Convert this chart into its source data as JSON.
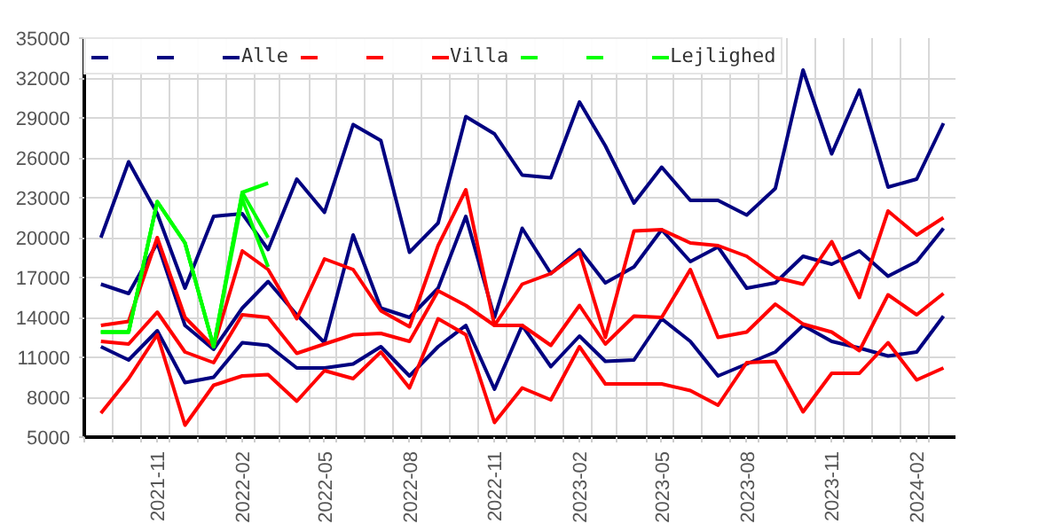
{
  "chart_data": {
    "type": "line",
    "x": [
      "2021-09",
      "2021-10",
      "2021-11",
      "2021-12",
      "2022-01",
      "2022-02",
      "2022-03",
      "2022-04",
      "2022-05",
      "2022-06",
      "2022-07",
      "2022-08",
      "2022-09",
      "2022-10",
      "2022-11",
      "2022-12",
      "2023-01",
      "2023-02",
      "2023-03",
      "2023-04",
      "2023-05",
      "2023-06",
      "2023-07",
      "2023-08",
      "2023-09",
      "2023-10",
      "2023-11",
      "2023-12",
      "2024-01",
      "2024-02",
      "2024-03"
    ],
    "series": [
      {
        "color": "#000080",
        "values": [
          20000,
          25700,
          21800,
          16200,
          21600,
          21800,
          19100,
          24400,
          21900,
          28500,
          27300,
          18900,
          21100,
          29100,
          27800,
          24700,
          24500,
          30200,
          26900,
          22600,
          25300,
          22800,
          22800,
          21700,
          23700,
          32600,
          26300,
          31100,
          23800,
          24400,
          28600
        ]
      },
      {
        "color": "#000080",
        "values": [
          16500,
          15800,
          19600,
          13400,
          11600,
          14700,
          16700,
          14200,
          12100,
          20200,
          14700,
          14000,
          16200,
          21600,
          14000,
          20700,
          17300,
          19100,
          16600,
          17800,
          20600,
          18200,
          19300,
          16200,
          16600,
          18600,
          18000,
          19000,
          17100,
          18200,
          20700
        ]
      },
      {
        "name": "Alle",
        "color": "#000080",
        "values": [
          11800,
          10800,
          13000,
          9100,
          9500,
          12100,
          11900,
          10200,
          10200,
          10500,
          11800,
          9600,
          11800,
          13400,
          8600,
          13400,
          10300,
          12600,
          10700,
          10800,
          13900,
          12200,
          9600,
          10500,
          11400,
          13400,
          12200,
          11700,
          11100,
          11400,
          14100
        ]
      },
      {
        "color": "#ff0000",
        "values": [
          13400,
          13700,
          20000,
          14000,
          11800,
          19000,
          17600,
          13900,
          18400,
          17600,
          14500,
          13300,
          19400,
          23600,
          13400,
          16500,
          17300,
          18900,
          12500,
          20500,
          20600,
          19600,
          19400,
          18600,
          17000,
          16500,
          19700,
          15500,
          22000,
          20200,
          21500
        ]
      },
      {
        "color": "#ff0000",
        "values": [
          12200,
          12000,
          14400,
          11400,
          10600,
          14200,
          14000,
          11300,
          12000,
          12700,
          12800,
          12200,
          16000,
          14900,
          13400,
          13400,
          11900,
          14900,
          12000,
          14100,
          14000,
          17600,
          12500,
          12900,
          15000,
          13500,
          12900,
          11500,
          15700,
          14200,
          15800
        ]
      },
      {
        "name": "Villa",
        "color": "#ff0000",
        "values": [
          6800,
          9400,
          12700,
          5900,
          8900,
          9600,
          9700,
          7700,
          10000,
          9400,
          11400,
          8700,
          13900,
          12700,
          6100,
          8700,
          7800,
          11800,
          9000,
          9000,
          9000,
          8500,
          7400,
          10600,
          10700,
          6900,
          9800,
          9800,
          12100,
          9300,
          10200
        ]
      },
      {
        "color": "#00ff00",
        "values": [
          12900,
          12900,
          22700,
          19600,
          11800,
          23400,
          24100,
          null,
          null,
          null,
          null,
          null,
          null,
          null,
          null,
          null,
          null,
          null,
          null,
          null,
          null,
          null,
          null,
          null,
          null,
          null,
          null,
          null,
          null,
          null,
          null
        ]
      },
      {
        "color": "#00ff00",
        "values": [
          12900,
          12900,
          22700,
          19600,
          11800,
          23400,
          20000,
          null,
          null,
          null,
          null,
          null,
          null,
          null,
          null,
          null,
          null,
          null,
          null,
          null,
          null,
          null,
          null,
          null,
          null,
          null,
          null,
          null,
          null,
          null,
          null
        ]
      },
      {
        "name": "Lejlighed",
        "color": "#00ff00",
        "values": [
          12900,
          12900,
          22700,
          19600,
          11800,
          22900,
          17800,
          null,
          null,
          null,
          null,
          null,
          null,
          null,
          null,
          null,
          null,
          null,
          null,
          null,
          null,
          null,
          null,
          null,
          null,
          null,
          null,
          null,
          null,
          null,
          null
        ]
      }
    ],
    "xlim": [
      "2021-08-14",
      "2024-03-14"
    ],
    "xticks": [
      "2021-11",
      "2022-02",
      "2022-05",
      "2022-08",
      "2022-11",
      "2023-02",
      "2023-05",
      "2023-08",
      "2023-11",
      "2024-02",
      {
        "value": "2021-08-14",
        "label": null
      },
      {
        "value": "2021-09-14",
        "label": null
      },
      {
        "value": "2021-10-14",
        "label": null
      },
      {
        "value": "2021-11-14",
        "label": null
      },
      {
        "value": "2021-12-14",
        "label": null
      },
      {
        "value": "2022-01-14",
        "label": null
      },
      {
        "value": "2022-02-14",
        "label": null
      },
      {
        "value": "2022-03-14",
        "label": null
      },
      {
        "value": "2022-04-14",
        "label": null
      },
      {
        "value": "2022-05-14",
        "label": null
      },
      {
        "value": "2022-06-14",
        "label": null
      },
      {
        "value": "2022-07-14",
        "label": null
      },
      {
        "value": "2022-08-14",
        "label": null
      },
      {
        "value": "2022-09-14",
        "label": null
      },
      {
        "value": "2022-10-14",
        "label": null
      },
      {
        "value": "2022-11-14",
        "label": null
      },
      {
        "value": "2022-12-14",
        "label": null
      },
      {
        "value": "2023-01-14",
        "label": null
      },
      {
        "value": "2023-02-14",
        "label": null
      },
      {
        "value": "2023-03-14",
        "label": null
      },
      {
        "value": "2023-04-14",
        "label": null
      },
      {
        "value": "2023-05-14",
        "label": null
      },
      {
        "value": "2023-06-14",
        "label": null
      },
      {
        "value": "2023-07-14",
        "label": null
      },
      {
        "value": "2023-08-14",
        "label": null
      },
      {
        "value": "2023-09-14",
        "label": null
      },
      {
        "value": "2023-10-14",
        "label": null
      },
      {
        "value": "2023-11-14",
        "label": null
      },
      {
        "value": "2023-12-14",
        "label": null
      },
      {
        "value": "2024-01-14",
        "label": null
      },
      {
        "value": "2024-02-14",
        "label": null
      }
    ],
    "ylim": [
      5000,
      35000
    ],
    "yticks": [
      5000,
      8000,
      11000,
      14000,
      17000,
      20000,
      23000,
      26000,
      29000,
      32000,
      35000
    ],
    "grid": true,
    "legend": "top left",
    "marker": "none",
    "line_style": "solid"
  }
}
